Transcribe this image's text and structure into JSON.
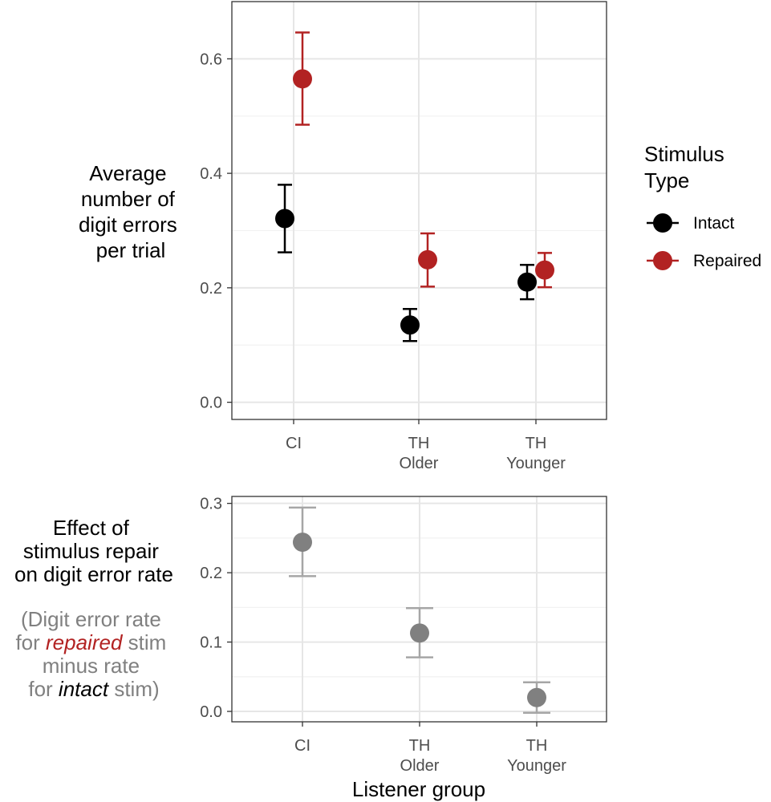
{
  "colors": {
    "intact": "#000000",
    "repaired": "#b22222",
    "difference_point": "#808080",
    "difference_error": "#a6a6a6",
    "grid_major": "#e6e6e6",
    "grid_minor": "#f2f2f2",
    "tick_text": "#4d4d4d",
    "panel_border": "#333333"
  },
  "chart_data": [
    {
      "id": "top",
      "type": "scatter",
      "title": "",
      "ylabel_lines": [
        "Average",
        "number of",
        "digit errors",
        "per trial"
      ],
      "xlabel": "",
      "categories": [
        [
          "CI"
        ],
        [
          "TH",
          "Older"
        ],
        [
          "TH",
          "Younger"
        ]
      ],
      "yticks": [
        "0.0",
        "0.2",
        "0.4",
        "0.6"
      ],
      "ylim": [
        -0.03,
        0.7
      ],
      "grid": true,
      "legend": {
        "title_lines": [
          "Stimulus",
          "Type"
        ],
        "position": "right",
        "entries": [
          "Intact",
          "Repaired"
        ]
      },
      "series": [
        {
          "name": "Intact",
          "color_key": "intact",
          "values": [
            0.321,
            0.135,
            0.21
          ],
          "lower": [
            0.262,
            0.107,
            0.18
          ],
          "upper": [
            0.38,
            0.163,
            0.24
          ]
        },
        {
          "name": "Repaired",
          "color_key": "repaired",
          "values": [
            0.565,
            0.249,
            0.231
          ],
          "lower": [
            0.485,
            0.202,
            0.201
          ],
          "upper": [
            0.646,
            0.295,
            0.261
          ]
        }
      ]
    },
    {
      "id": "bottom",
      "type": "scatter",
      "title": "",
      "ylabel_lines": [
        "Effect of",
        "stimulus repair",
        "on digit error rate"
      ],
      "xlabel": "Listener group",
      "categories": [
        [
          "CI"
        ],
        [
          "TH",
          "Older"
        ],
        [
          "TH",
          "Younger"
        ]
      ],
      "yticks": [
        "0.0",
        "0.1",
        "0.2",
        "0.3"
      ],
      "ylim": [
        -0.015,
        0.31
      ],
      "grid": true,
      "series": [
        {
          "color_key": "difference_point",
          "values": [
            0.244,
            0.113,
            0.02
          ],
          "lower": [
            0.195,
            0.078,
            -0.002
          ],
          "upper": [
            0.294,
            0.149,
            0.042
          ]
        }
      ]
    }
  ],
  "annotation": {
    "line1": "(Digit error rate",
    "line2_pre": "for",
    "line2_em": "repaired",
    "line2_post": "stim",
    "line3": "minus rate",
    "line4_pre": "for",
    "line4_em": "intact",
    "line4_post": "stim)"
  }
}
